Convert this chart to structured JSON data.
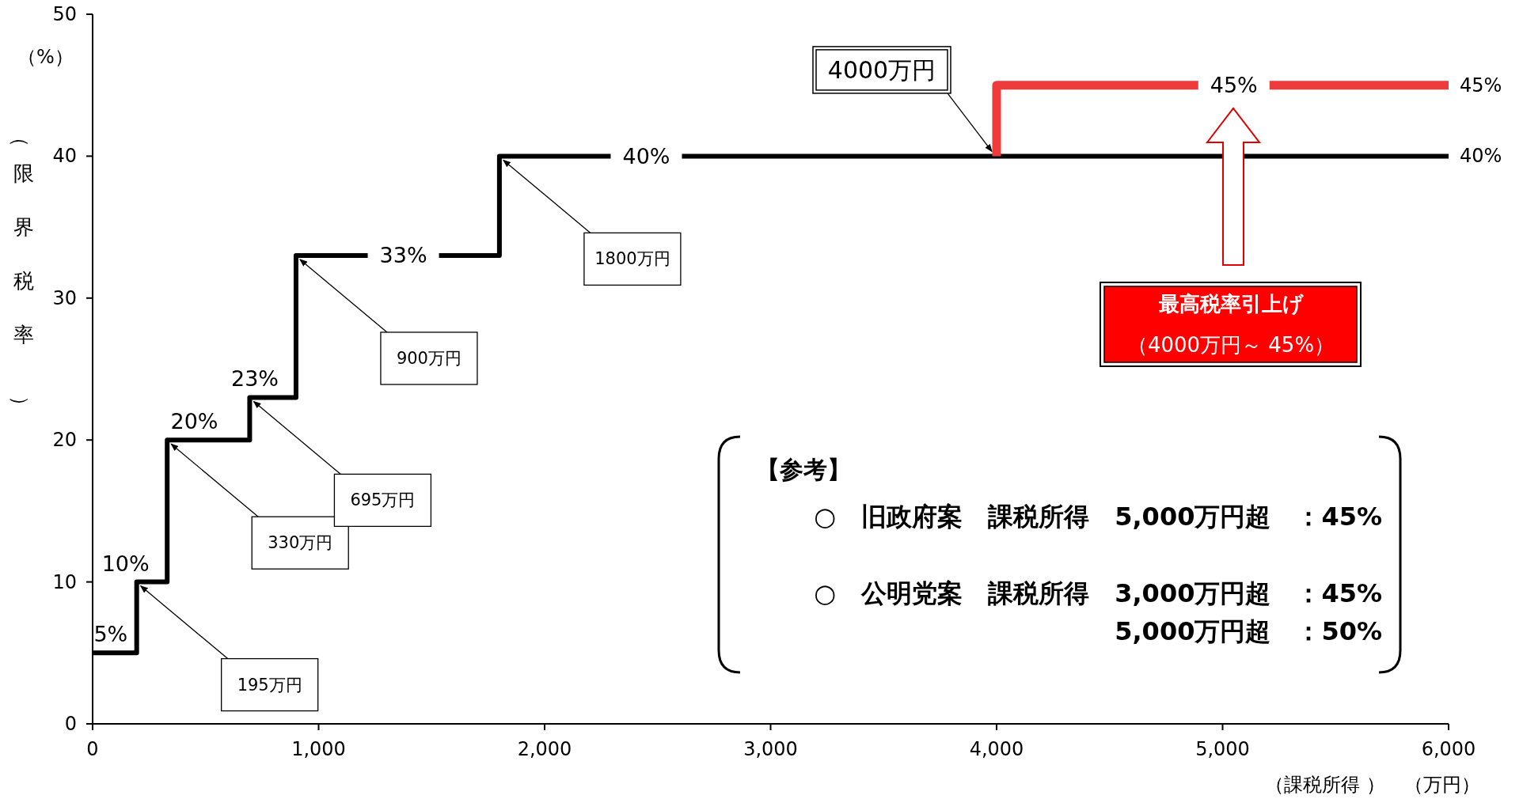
{
  "chart_data": {
    "type": "step",
    "ylabel": "（限界税率）",
    "xlabel": "（課税所得 ）　（万円）",
    "xlim": [
      0,
      6000
    ],
    "ylim": [
      0,
      50
    ],
    "xticks": [
      0,
      {
        "value": 1000,
        "label": "1,000"
      },
      {
        "value": 2000,
        "label": "2,000"
      },
      {
        "value": 3000,
        "label": "3,000"
      },
      {
        "value": 4000,
        "label": "4,000"
      },
      {
        "value": 5000,
        "label": "5,000"
      },
      {
        "value": 6000,
        "label": "6,000"
      }
    ],
    "yticks": [
      0,
      10,
      20,
      30,
      40,
      50
    ],
    "series": [
      {
        "type": "step",
        "color": "#000000",
        "x": [
          0,
          195,
          330,
          695,
          900,
          1800,
          6000
        ],
        "values": [
          5,
          10,
          20,
          23,
          33,
          40,
          40
        ]
      },
      {
        "type": "line",
        "color": "#ee3b3b",
        "x": [
          4000,
          4000,
          6000
        ],
        "values": [
          40,
          45,
          45
        ]
      }
    ],
    "annotations": [
      "（%）",
      {
        "text": "5%",
        "x": 80,
        "y": 5
      },
      {
        "text": "10%",
        "x": 195,
        "y": 10
      },
      {
        "text": "20%",
        "x": 450,
        "y": 20
      },
      {
        "text": "23%",
        "x": 718,
        "y": 23
      },
      {
        "text": "33%",
        "x": 1375,
        "y": 33
      },
      {
        "text": "40%",
        "x": 2450,
        "y": 40
      },
      {
        "text": "40%",
        "x": 6000,
        "y": 40
      },
      {
        "text": "45%",
        "x": 5050,
        "y": 45
      },
      {
        "text": "45%",
        "x": 6000,
        "y": 45
      },
      {
        "text": "195万円",
        "x": 195,
        "y": 10
      },
      {
        "text": "330万円",
        "x": 330,
        "y": 20
      },
      {
        "text": "695万円",
        "x": 695,
        "y": 23
      },
      {
        "text": "900万円",
        "x": 900,
        "y": 33
      },
      {
        "text": "1800万円",
        "x": 1800,
        "y": 40
      },
      {
        "text": "4000万円",
        "x": 4000,
        "y": 40
      },
      "最高税率引上げ",
      "（4000万円～ 45%）",
      "【参考】",
      "○　旧政府案　課税所得　5,000万円超　：45%",
      "○　公明党案　課税所得　3,000万円超　：45%",
      "5,000万円超　：50%"
    ]
  }
}
